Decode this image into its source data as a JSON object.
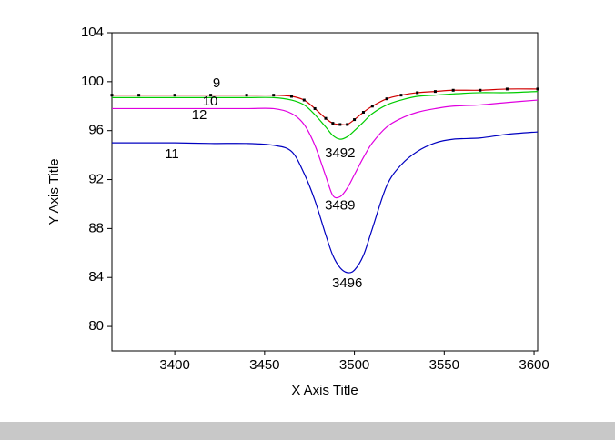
{
  "chart_data": {
    "type": "line",
    "x_label": "X Axis Title",
    "y_label": "Y Axis Title",
    "xlim": [
      3365,
      3602
    ],
    "ylim": [
      78,
      104
    ],
    "xticks": [
      3400,
      3450,
      3500,
      3550,
      3600
    ],
    "yticks": [
      80,
      84,
      88,
      92,
      96,
      100,
      104
    ],
    "x": [
      3365,
      3380,
      3400,
      3420,
      3440,
      3455,
      3465,
      3472,
      3478,
      3484,
      3488,
      3492,
      3496,
      3500,
      3505,
      3510,
      3518,
      3526,
      3535,
      3545,
      3555,
      3570,
      3585,
      3602
    ],
    "series": [
      {
        "name": "9",
        "color": "#d00000",
        "marker_color": "#000000",
        "values": [
          98.9,
          98.9,
          98.9,
          98.9,
          98.9,
          98.9,
          98.8,
          98.5,
          97.8,
          97.0,
          96.6,
          96.5,
          96.5,
          96.9,
          97.5,
          98.0,
          98.6,
          98.9,
          99.1,
          99.2,
          99.3,
          99.3,
          99.4,
          99.4
        ]
      },
      {
        "name": "10",
        "color": "#00cc00",
        "values": [
          98.7,
          98.7,
          98.7,
          98.7,
          98.7,
          98.7,
          98.5,
          98.1,
          97.3,
          96.3,
          95.6,
          95.3,
          95.5,
          96.0,
          96.7,
          97.4,
          98.1,
          98.5,
          98.8,
          98.9,
          99.0,
          99.1,
          99.1,
          99.2
        ]
      },
      {
        "name": "12",
        "color": "#e000e0",
        "values": [
          97.8,
          97.8,
          97.8,
          97.8,
          97.8,
          97.8,
          97.4,
          96.5,
          94.8,
          92.3,
          90.7,
          90.6,
          91.3,
          92.4,
          93.8,
          95.0,
          96.3,
          97.0,
          97.5,
          97.8,
          98.0,
          98.1,
          98.3,
          98.5
        ]
      },
      {
        "name": "11",
        "color": "#0000c0",
        "values": [
          95.0,
          95.0,
          95.0,
          94.95,
          94.95,
          94.8,
          94.3,
          92.5,
          90.3,
          87.5,
          85.8,
          84.8,
          84.4,
          84.6,
          85.8,
          88.0,
          91.5,
          93.2,
          94.3,
          95.0,
          95.3,
          95.4,
          95.7,
          95.9
        ]
      }
    ],
    "annotations": [
      "3492",
      "3489",
      "3496"
    ]
  }
}
